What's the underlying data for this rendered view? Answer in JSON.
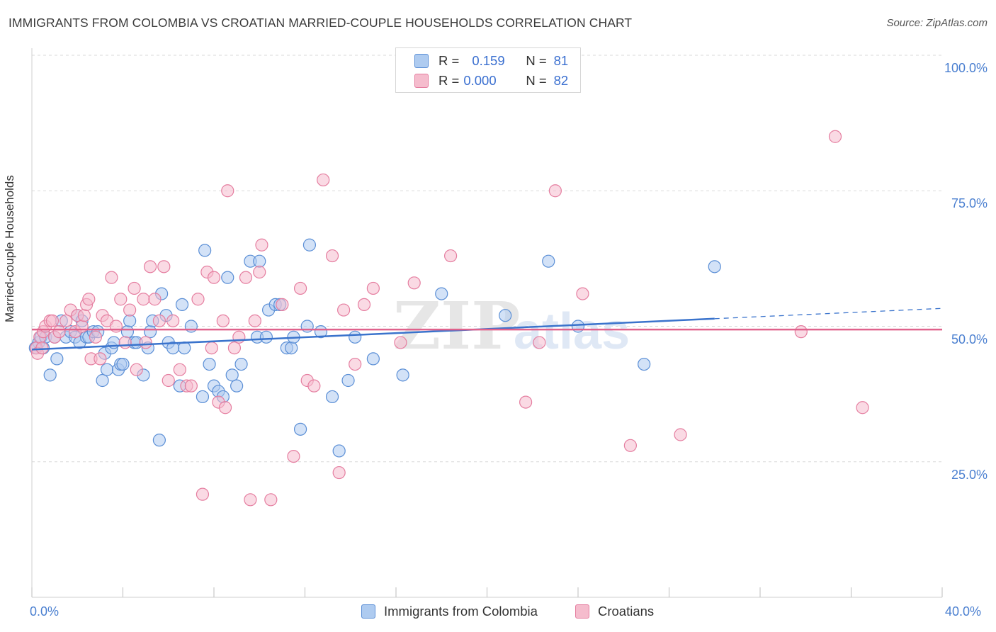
{
  "title": "IMMIGRANTS FROM COLOMBIA VS CROATIAN MARRIED-COUPLE HOUSEHOLDS CORRELATION CHART",
  "source": "Source: ZipAtlas.com",
  "colors": {
    "blue_fill": "#aecbf0",
    "blue_stroke": "#5b8fd6",
    "blue_line": "#3a73cc",
    "pink_fill": "#f5bccd",
    "pink_stroke": "#e57ea0",
    "pink_line": "#e0628c",
    "grid": "#d9d9d9",
    "tick_text": "#4a7fd0"
  },
  "legend": {
    "rows": [
      {
        "r_label": "R =",
        "r_value": "0.159",
        "n_label": "N =",
        "n_value": "81",
        "color": "#aecbf0",
        "stroke": "#5b8fd6"
      },
      {
        "r_label": "R =",
        "r_value": "0.000",
        "n_label": "N =",
        "n_value": "82",
        "color": "#f5bccd",
        "stroke": "#e57ea0"
      }
    ]
  },
  "chart_data": {
    "type": "scatter",
    "title": "IMMIGRANTS FROM COLOMBIA VS CROATIAN MARRIED-COUPLE HOUSEHOLDS CORRELATION CHART",
    "xlabel": "",
    "ylabel": "Married-couple Households",
    "xlim": [
      0,
      40
    ],
    "ylim": [
      0,
      105
    ],
    "x_tick_labels": [
      "0.0%",
      "40.0%"
    ],
    "y_ticks": [
      25,
      50,
      75,
      100
    ],
    "y_tick_labels": [
      "25.0%",
      "50.0%",
      "75.0%",
      "100.0%"
    ],
    "grid": "horizontal dashed",
    "legend_position": "top-center",
    "series": [
      {
        "name": "Immigrants from Colombia",
        "points": [
          [
            0.2,
            46
          ],
          [
            0.3,
            47
          ],
          [
            0.4,
            48
          ],
          [
            0.5,
            46
          ],
          [
            0.6,
            48
          ],
          [
            0.8,
            41
          ],
          [
            1.0,
            48
          ],
          [
            1.1,
            44
          ],
          [
            1.3,
            51
          ],
          [
            1.5,
            48
          ],
          [
            1.7,
            49
          ],
          [
            1.9,
            48
          ],
          [
            2.0,
            52
          ],
          [
            2.1,
            47
          ],
          [
            2.2,
            51
          ],
          [
            2.4,
            48
          ],
          [
            2.5,
            48
          ],
          [
            2.7,
            49
          ],
          [
            2.9,
            49
          ],
          [
            3.1,
            40
          ],
          [
            3.2,
            45
          ],
          [
            3.3,
            42
          ],
          [
            3.5,
            46
          ],
          [
            3.6,
            47
          ],
          [
            3.8,
            42
          ],
          [
            3.9,
            43
          ],
          [
            4.0,
            43
          ],
          [
            4.2,
            49
          ],
          [
            4.3,
            51
          ],
          [
            4.5,
            47
          ],
          [
            4.6,
            47
          ],
          [
            4.9,
            41
          ],
          [
            5.1,
            46
          ],
          [
            5.2,
            49
          ],
          [
            5.3,
            51
          ],
          [
            5.6,
            29
          ],
          [
            5.7,
            56
          ],
          [
            5.9,
            52
          ],
          [
            6.0,
            47
          ],
          [
            6.2,
            46
          ],
          [
            6.5,
            39
          ],
          [
            6.6,
            54
          ],
          [
            6.7,
            46
          ],
          [
            7.0,
            50
          ],
          [
            7.5,
            37
          ],
          [
            7.6,
            64
          ],
          [
            7.8,
            43
          ],
          [
            8.0,
            39
          ],
          [
            8.2,
            38
          ],
          [
            8.4,
            37
          ],
          [
            8.6,
            59
          ],
          [
            8.8,
            41
          ],
          [
            9.0,
            39
          ],
          [
            9.2,
            43
          ],
          [
            9.6,
            62
          ],
          [
            9.9,
            48
          ],
          [
            10.0,
            62
          ],
          [
            10.3,
            48
          ],
          [
            10.4,
            53
          ],
          [
            10.7,
            54
          ],
          [
            10.9,
            54
          ],
          [
            11.2,
            46
          ],
          [
            11.4,
            46
          ],
          [
            11.5,
            48
          ],
          [
            11.8,
            31
          ],
          [
            12.1,
            50
          ],
          [
            12.2,
            65
          ],
          [
            12.7,
            49
          ],
          [
            13.2,
            37
          ],
          [
            13.5,
            27
          ],
          [
            13.9,
            40
          ],
          [
            14.2,
            48
          ],
          [
            15.0,
            44
          ],
          [
            16.3,
            41
          ],
          [
            18.0,
            56
          ],
          [
            20.8,
            52
          ],
          [
            22.7,
            62
          ],
          [
            24.0,
            50
          ],
          [
            26.9,
            43
          ],
          [
            30.0,
            61
          ],
          [
            0.15,
            46
          ]
        ]
      },
      {
        "name": "Croatians",
        "points": [
          [
            0.2,
            46
          ],
          [
            0.35,
            48
          ],
          [
            0.5,
            49
          ],
          [
            0.6,
            50
          ],
          [
            0.8,
            51
          ],
          [
            0.9,
            51
          ],
          [
            1.0,
            48
          ],
          [
            1.2,
            49
          ],
          [
            1.5,
            51
          ],
          [
            1.7,
            53
          ],
          [
            1.9,
            49
          ],
          [
            2.0,
            52
          ],
          [
            2.2,
            50
          ],
          [
            2.3,
            52
          ],
          [
            2.4,
            54
          ],
          [
            2.5,
            55
          ],
          [
            2.6,
            44
          ],
          [
            2.8,
            48
          ],
          [
            3.0,
            44
          ],
          [
            3.1,
            52
          ],
          [
            3.3,
            51
          ],
          [
            3.5,
            59
          ],
          [
            3.7,
            50
          ],
          [
            3.9,
            55
          ],
          [
            4.1,
            47
          ],
          [
            4.3,
            53
          ],
          [
            4.5,
            57
          ],
          [
            4.6,
            42
          ],
          [
            4.9,
            55
          ],
          [
            5.0,
            47
          ],
          [
            5.2,
            61
          ],
          [
            5.4,
            55
          ],
          [
            5.6,
            51
          ],
          [
            5.8,
            61
          ],
          [
            6.0,
            40
          ],
          [
            6.2,
            51
          ],
          [
            6.5,
            42
          ],
          [
            6.8,
            39
          ],
          [
            7.0,
            39
          ],
          [
            7.3,
            55
          ],
          [
            7.5,
            19
          ],
          [
            7.7,
            60
          ],
          [
            7.9,
            46
          ],
          [
            8.0,
            59
          ],
          [
            8.2,
            36
          ],
          [
            8.4,
            51
          ],
          [
            8.5,
            35
          ],
          [
            8.6,
            75
          ],
          [
            8.9,
            46
          ],
          [
            9.1,
            48
          ],
          [
            9.4,
            59
          ],
          [
            9.6,
            18
          ],
          [
            9.8,
            51
          ],
          [
            10.0,
            60
          ],
          [
            10.1,
            65
          ],
          [
            10.5,
            18
          ],
          [
            11.0,
            54
          ],
          [
            11.5,
            26
          ],
          [
            11.8,
            57
          ],
          [
            12.1,
            40
          ],
          [
            12.4,
            39
          ],
          [
            12.8,
            77
          ],
          [
            13.2,
            63
          ],
          [
            13.5,
            23
          ],
          [
            13.7,
            53
          ],
          [
            14.2,
            43
          ],
          [
            14.6,
            54
          ],
          [
            15.0,
            57
          ],
          [
            16.2,
            47
          ],
          [
            16.8,
            58
          ],
          [
            18.4,
            63
          ],
          [
            21.7,
            36
          ],
          [
            22.3,
            47
          ],
          [
            23.0,
            75
          ],
          [
            24.2,
            56
          ],
          [
            26.3,
            28
          ],
          [
            28.5,
            30
          ],
          [
            33.8,
            49
          ],
          [
            35.3,
            85
          ],
          [
            36.5,
            35
          ],
          [
            0.25,
            45
          ],
          [
            0.45,
            46
          ]
        ]
      }
    ],
    "trend_lines": [
      {
        "series": "Immigrants from Colombia",
        "x": [
          0,
          40
        ],
        "y": [
          45.7,
          53.3
        ],
        "solid_until_x": 30.0
      },
      {
        "series": "Croatians",
        "x": [
          0,
          40
        ],
        "y": [
          49.4,
          49.4
        ]
      }
    ],
    "bottom_legend": [
      "Immigrants from Colombia",
      "Croatians"
    ]
  }
}
